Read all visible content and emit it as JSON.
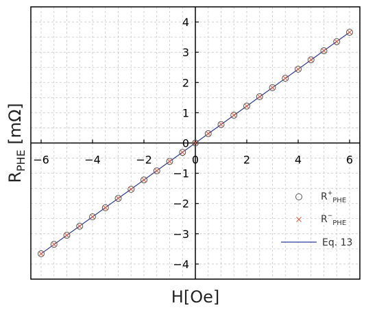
{
  "chart_data": {
    "type": "scatter",
    "xlabel": "H[Oe]",
    "ylabel_main": "R",
    "ylabel_sub": "PHE",
    "ylabel_unit": " [mΩ]",
    "xlim": [
      -6.4,
      6.4
    ],
    "ylim": [
      -4.5,
      4.5
    ],
    "xticks": [
      -6,
      -4,
      -2,
      0,
      2,
      4,
      6
    ],
    "yticks": [
      -4,
      -3,
      -2,
      -1,
      0,
      1,
      2,
      3,
      4
    ],
    "grid": true,
    "legend_position": "bottom-right",
    "series": [
      {
        "name_main": "R",
        "name_sup": "+",
        "name_sub": "PHE",
        "marker": "circle",
        "color": "#555555",
        "x": [
          -6,
          -5.5,
          -5,
          -4.5,
          -4,
          -3.5,
          -3,
          -2.5,
          -2,
          -1.5,
          -1,
          -0.5,
          0,
          0.5,
          1,
          1.5,
          2,
          2.5,
          3,
          3.5,
          4,
          4.5,
          5,
          5.5,
          6
        ],
        "y": [
          -3.66,
          -3.35,
          -3.05,
          -2.75,
          -2.44,
          -2.14,
          -1.83,
          -1.53,
          -1.22,
          -0.92,
          -0.61,
          -0.31,
          0,
          0.31,
          0.61,
          0.92,
          1.22,
          1.53,
          1.83,
          2.14,
          2.44,
          2.75,
          3.05,
          3.35,
          3.66
        ]
      },
      {
        "name_main": "R",
        "name_sup": "−",
        "name_sub": "PHE",
        "marker": "x",
        "color": "#e05a3a",
        "x": [
          -6,
          -5.5,
          -5,
          -4.5,
          -4,
          -3.5,
          -3,
          -2.5,
          -2,
          -1.5,
          -1,
          -0.5,
          0,
          0.5,
          1,
          1.5,
          2,
          2.5,
          3,
          3.5,
          4,
          4.5,
          5,
          5.5,
          6
        ],
        "y": [
          -3.66,
          -3.35,
          -3.05,
          -2.75,
          -2.44,
          -2.14,
          -1.83,
          -1.53,
          -1.22,
          -0.92,
          -0.61,
          -0.31,
          0,
          0.31,
          0.61,
          0.92,
          1.22,
          1.53,
          1.83,
          2.14,
          2.44,
          2.75,
          3.05,
          3.35,
          3.66
        ]
      },
      {
        "name": "Eq. 13",
        "marker": "line",
        "color": "#2a3a9a",
        "x": [
          -6,
          6
        ],
        "y": [
          -3.66,
          3.66
        ]
      }
    ]
  }
}
